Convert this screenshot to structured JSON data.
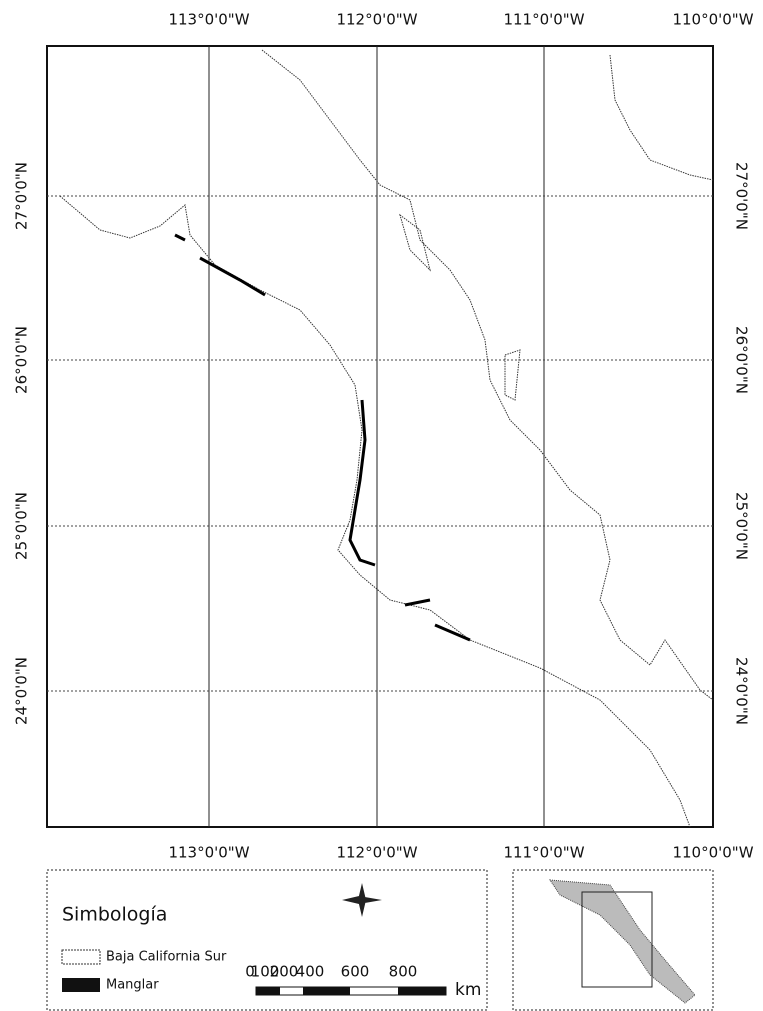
{
  "map": {
    "top_labels": [
      "113°0'0\"W",
      "112°0'0\"W",
      "111°0'0\"W",
      "110°0'0\"W"
    ],
    "bottom_labels": [
      "113°0'0\"W",
      "112°0'0\"W",
      "111°0'0\"W",
      "110°0'0\"W"
    ],
    "left_labels": [
      "27°0'0\"N",
      "26°0'0\"N",
      "25°0'0\"N",
      "24°0'0\"N"
    ],
    "right_labels": [
      "27°0'0\"N",
      "26°0'0\"N",
      "25°0'0\"N",
      "24°0'0\"N"
    ]
  },
  "legend": {
    "title": "Simbología",
    "items": [
      "Baja California Sur",
      "Manglar"
    ],
    "scale_labels": [
      "0",
      "100",
      "200",
      "400",
      "600",
      "800"
    ],
    "scale_unit": "km"
  }
}
